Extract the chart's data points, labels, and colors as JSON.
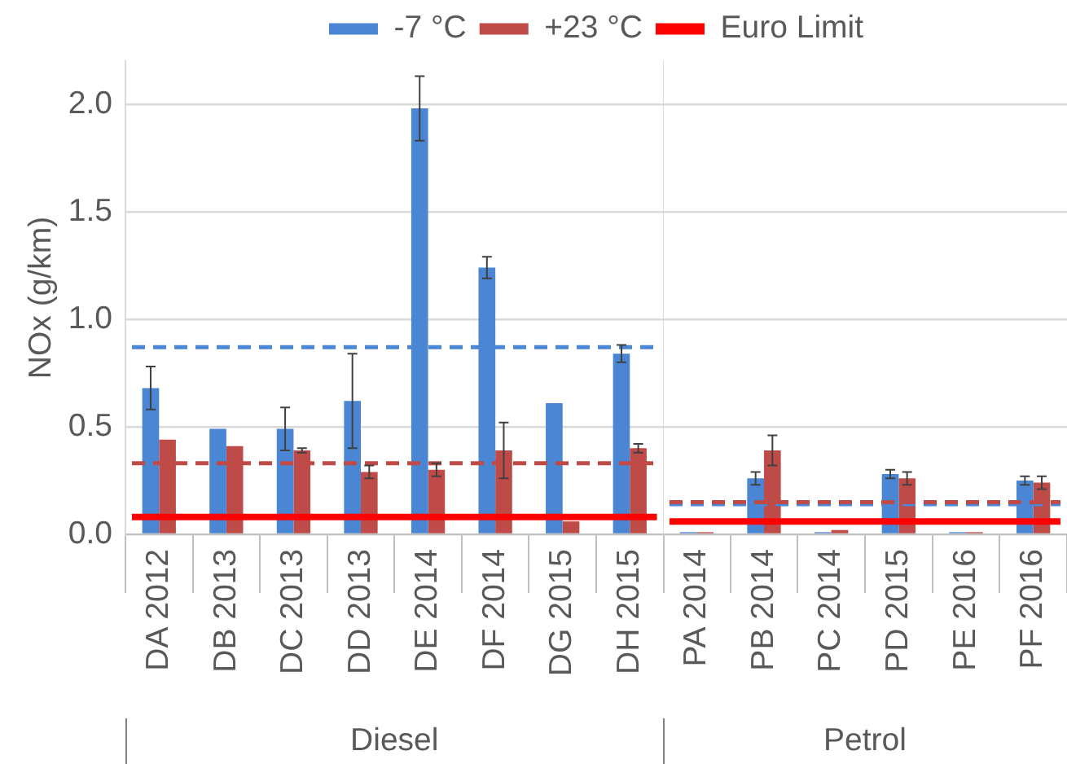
{
  "chart_data": [
    {
      "type": "bar",
      "ylabel": "NOx (g/km)",
      "xlabel": "Diesel",
      "categories": [
        "DA 2012",
        "DB 2013",
        "DC 2013",
        "DD 2013",
        "DE 2014",
        "DF 2014",
        "DG 2015",
        "DH 2015"
      ],
      "series": [
        {
          "name": "-7 °C",
          "color": "#4a86d3",
          "values": [
            0.68,
            0.49,
            0.49,
            0.62,
            1.98,
            1.24,
            0.61,
            0.84
          ],
          "errors": [
            0.1,
            null,
            0.1,
            0.22,
            0.15,
            0.05,
            null,
            0.04
          ]
        },
        {
          "name": "+23 °C",
          "color": "#bf4b48",
          "values": [
            0.44,
            0.41,
            0.39,
            0.29,
            0.3,
            0.39,
            0.06,
            0.4
          ],
          "errors": [
            null,
            null,
            0.01,
            0.03,
            0.03,
            0.13,
            null,
            0.02
          ]
        }
      ],
      "ref_lines": [
        {
          "axis": "y",
          "value": 0.08,
          "label": "Euro Limit",
          "color": "#ff0000"
        },
        {
          "axis": "y",
          "value": 0.87,
          "color": "#4a86d3",
          "line_style": "dashed"
        },
        {
          "axis": "y",
          "value": 0.33,
          "color": "#bf4b48",
          "line_style": "dashed"
        }
      ],
      "ylim": [
        0,
        2.2
      ],
      "yticks": [
        {
          "value": 0,
          "label": "0.0"
        },
        0.5,
        {
          "value": 1,
          "label": "1.0"
        },
        1.5,
        {
          "value": 2,
          "label": "2.0"
        }
      ],
      "grid": "y",
      "legend": "top"
    },
    {
      "type": "bar",
      "xlabel": "Petrol",
      "categories": [
        "PA 2014",
        "PB 2014",
        "PC 2014",
        "PD 2015",
        "PE 2016",
        "PF 2016"
      ],
      "series": [
        {
          "color": "#4a86d3",
          "values": [
            0.01,
            0.26,
            0.01,
            0.28,
            0.01,
            0.25
          ],
          "errors": [
            null,
            0.03,
            null,
            0.02,
            null,
            0.02
          ]
        },
        {
          "color": "#bf4b48",
          "values": [
            0.01,
            0.39,
            0.02,
            0.26,
            0.01,
            0.24
          ],
          "errors": [
            null,
            0.07,
            null,
            0.03,
            null,
            0.03
          ]
        }
      ],
      "ref_lines": [
        {
          "axis": "y",
          "value": 0.06,
          "color": "#ff0000"
        },
        {
          "axis": "y",
          "value": 0.14,
          "color": "#4a86d3",
          "line_style": "dashed"
        },
        {
          "axis": "y",
          "value": 0.15,
          "color": "#bf4b48",
          "line_style": "dashed"
        }
      ],
      "ylim": [
        0,
        2.2
      ],
      "yticks": [
        0,
        0.5,
        1,
        1.5,
        2
      ],
      "tick_labels": "x",
      "grid": "y"
    }
  ]
}
